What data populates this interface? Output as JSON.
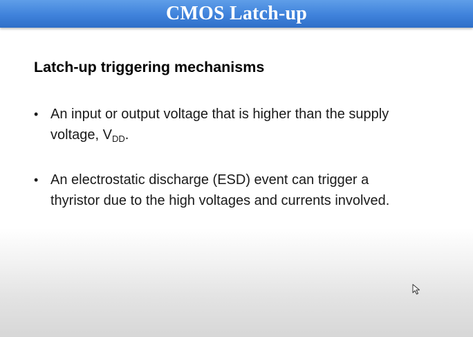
{
  "slide": {
    "title": "CMOS Latch-up",
    "heading": "Latch-up triggering mechanisms",
    "bullets": [
      {
        "text_before": "An input or output voltage that is higher than the supply voltage, V",
        "subscript": "DD",
        "text_after": "."
      },
      {
        "text": "An electrostatic discharge (ESD) event can trigger a thyristor due to the high voltages and currents involved."
      }
    ],
    "bullet_symbol": "•"
  },
  "cursor_icon": "arrow-pointer-icon",
  "colors": {
    "title_bar": "#3f82db",
    "title_text": "#ffffff",
    "body_text": "#1a1a1a"
  }
}
